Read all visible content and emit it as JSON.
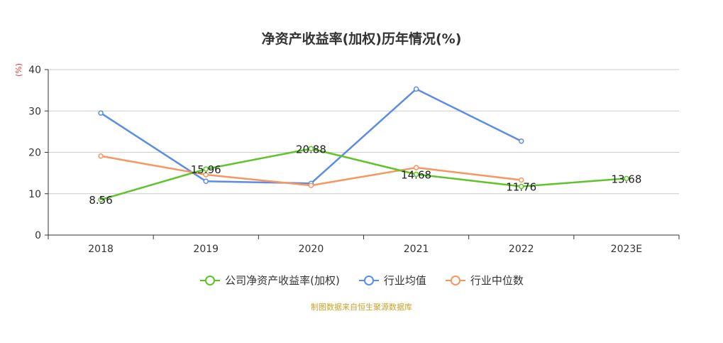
{
  "chart_data": {
    "type": "line",
    "title": "净资产收益率(加权)历年情况(%)",
    "ylabel": "(%)",
    "xlabel": "",
    "categories": [
      "2018",
      "2019",
      "2020",
      "2021",
      "2022",
      "2023E"
    ],
    "ylim": [
      0,
      40
    ],
    "yticks": [
      0,
      10,
      20,
      30,
      40
    ],
    "grid": true,
    "legend_position": "bottom",
    "series": [
      {
        "name": "公司净资产收益率(加权)",
        "color": "#5ec42a",
        "values": [
          8.56,
          15.96,
          20.88,
          14.68,
          11.76,
          13.68
        ],
        "labels": [
          "8.56",
          "15.96",
          "20.88",
          "14.68",
          "11.76",
          "13.68"
        ]
      },
      {
        "name": "行业均值",
        "color": "#5b8ce6",
        "values": [
          29.5,
          13.0,
          12.5,
          35.3,
          22.7,
          null
        ]
      },
      {
        "name": "行业中位数",
        "color": "#f7965e",
        "values": [
          19.1,
          14.6,
          12.0,
          16.3,
          13.3,
          null
        ]
      }
    ]
  },
  "source": "制图数据来自恒生聚源数据库"
}
